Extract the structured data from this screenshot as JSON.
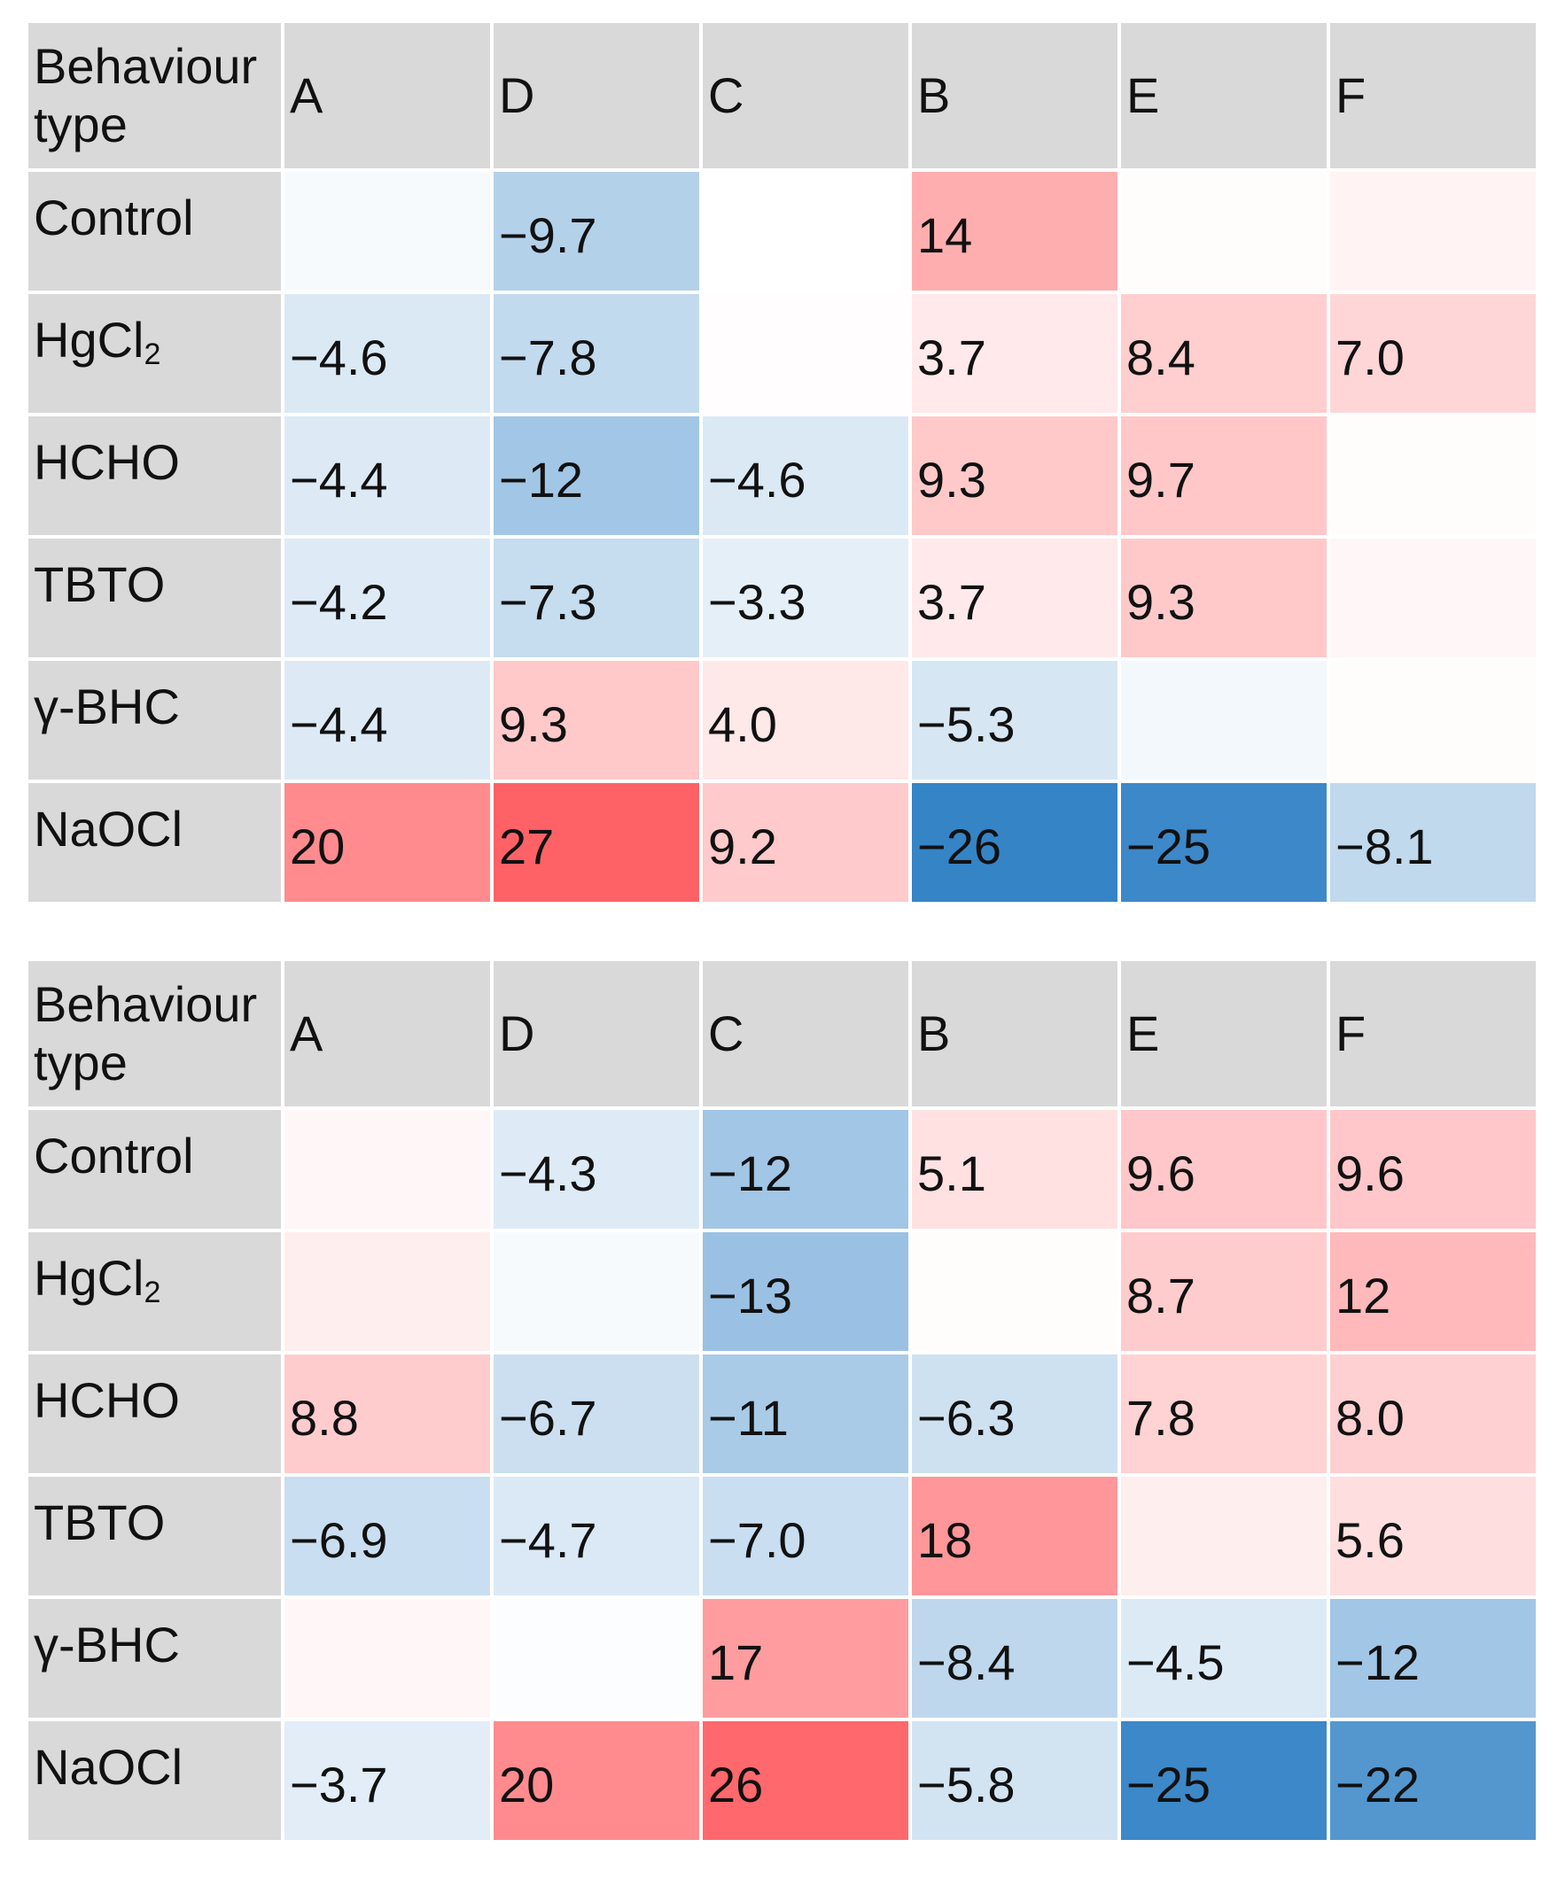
{
  "chart_data": [
    {
      "type": "heatmap",
      "title": "",
      "corner_label": "Behaviour type",
      "columns": [
        "A",
        "D",
        "C",
        "B",
        "E",
        "F"
      ],
      "rows": [
        {
          "label": "Control",
          "label_main": "Control",
          "label_sub": "",
          "values": [
            null,
            -9.7,
            null,
            14,
            null,
            null
          ]
        },
        {
          "label": "HgCl2",
          "label_main": "HgCl",
          "label_sub": "2",
          "values": [
            -4.6,
            -7.8,
            null,
            3.7,
            8.4,
            7.0
          ]
        },
        {
          "label": "HCHO",
          "label_main": "HCHO",
          "label_sub": "",
          "values": [
            -4.4,
            -12,
            -4.6,
            9.3,
            9.7,
            null
          ]
        },
        {
          "label": "TBTO",
          "label_main": "TBTO",
          "label_sub": "",
          "values": [
            -4.2,
            -7.3,
            -3.3,
            3.7,
            9.3,
            null
          ]
        },
        {
          "label": "γ-BHC",
          "label_main": "γ-BHC",
          "label_sub": "",
          "values": [
            -4.4,
            9.3,
            4.0,
            -5.3,
            null,
            null
          ]
        },
        {
          "label": "NaOCl",
          "label_main": "NaOCl",
          "label_sub": "",
          "values": [
            20,
            27,
            9.2,
            -26,
            -25,
            -8.1
          ]
        }
      ],
      "cell_labels": [
        [
          "",
          "−9.7",
          "",
          "14",
          "",
          ""
        ],
        [
          "−4.6",
          "−7.8",
          "",
          "3.7",
          "8.4",
          "7.0"
        ],
        [
          "−4.4",
          "−12",
          "−4.6",
          "9.3",
          "9.7",
          ""
        ],
        [
          "−4.2",
          "−7.3",
          "−3.3",
          "3.7",
          "9.3",
          ""
        ],
        [
          "−4.4",
          "9.3",
          "4.0",
          "−5.3",
          "",
          ""
        ],
        [
          "20",
          "27",
          "9.2",
          "−26",
          "−25",
          "−8.1"
        ]
      ],
      "unlabeled_cell_tint": [
        [
          -1,
          null,
          0,
          null,
          0.5,
          2
        ],
        [
          null,
          null,
          0.3,
          null,
          null,
          null
        ],
        [
          null,
          null,
          null,
          null,
          null,
          0.5
        ],
        [
          null,
          null,
          null,
          null,
          null,
          1.5
        ],
        [
          null,
          null,
          null,
          null,
          -1.5,
          0.5
        ],
        [
          null,
          null,
          null,
          null,
          null,
          null
        ]
      ]
    },
    {
      "type": "heatmap",
      "title": "",
      "corner_label": "Behaviour type",
      "columns": [
        "A",
        "D",
        "C",
        "B",
        "E",
        "F"
      ],
      "rows": [
        {
          "label": "Control",
          "label_main": "Control",
          "label_sub": "",
          "values": [
            null,
            -4.3,
            -12,
            5.1,
            9.6,
            9.6
          ]
        },
        {
          "label": "HgCl2",
          "label_main": "HgCl",
          "label_sub": "2",
          "values": [
            null,
            null,
            -13,
            null,
            8.7,
            12
          ]
        },
        {
          "label": "HCHO",
          "label_main": "HCHO",
          "label_sub": "",
          "values": [
            8.8,
            -6.7,
            -11,
            -6.3,
            7.8,
            8.0
          ]
        },
        {
          "label": "TBTO",
          "label_main": "TBTO",
          "label_sub": "",
          "values": [
            -6.9,
            -4.7,
            -7.0,
            18,
            null,
            5.6
          ]
        },
        {
          "label": "γ-BHC",
          "label_main": "γ-BHC",
          "label_sub": "",
          "values": [
            null,
            null,
            17,
            -8.4,
            -4.5,
            -12
          ]
        },
        {
          "label": "NaOCl",
          "label_main": "NaOCl",
          "label_sub": "",
          "values": [
            -3.7,
            20,
            26,
            -5.8,
            -25,
            -22
          ]
        }
      ],
      "cell_labels": [
        [
          "",
          "−4.3",
          "−12",
          "5.1",
          "9.6",
          "9.6"
        ],
        [
          "",
          "",
          "−13",
          "",
          "8.7",
          "12"
        ],
        [
          "8.8",
          "−6.7",
          "−11",
          "−6.3",
          "7.8",
          "8.0"
        ],
        [
          "−6.9",
          "−4.7",
          "−7.0",
          "18",
          "",
          "5.6"
        ],
        [
          "",
          "",
          "17",
          "−8.4",
          "−4.5",
          "−12"
        ],
        [
          "−3.7",
          "20",
          "26",
          "−5.8",
          "−25",
          "−22"
        ]
      ],
      "unlabeled_cell_tint": [
        [
          1.5,
          null,
          null,
          null,
          null,
          null
        ],
        [
          3,
          -1,
          null,
          0.5,
          null,
          null
        ],
        [
          null,
          null,
          null,
          null,
          null,
          null
        ],
        [
          null,
          null,
          null,
          null,
          3,
          null
        ],
        [
          1.5,
          -0.5,
          null,
          null,
          null,
          null
        ],
        [
          null,
          null,
          null,
          null,
          null,
          null
        ]
      ]
    }
  ],
  "colors": {
    "header_bg": "#d9d9d9",
    "neutral": "#ffffff",
    "negative_max": "#2d7fc4",
    "positive_max": "#ff6266"
  },
  "color_scale_max_abs": 27
}
